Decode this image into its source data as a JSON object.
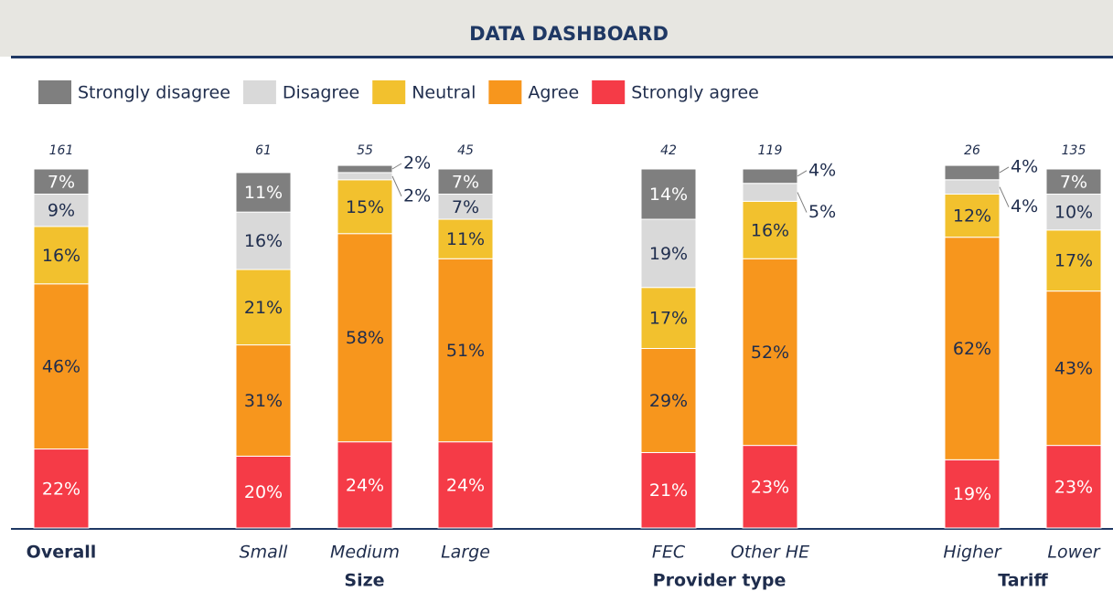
{
  "header": {
    "title": "DATA DASHBOARD"
  },
  "chart_data": {
    "type": "stacked_bar",
    "categories": [
      "Overall",
      "Small",
      "Medium",
      "Large",
      "FEC",
      "Other HE",
      "Higher",
      "Lower"
    ],
    "counts": [
      161,
      61,
      55,
      45,
      42,
      119,
      26,
      135
    ],
    "groups": [
      "Size",
      "Provider type",
      "Tariff"
    ],
    "series": [
      {
        "name": "Strongly agree",
        "color": "#f53b47",
        "values": [
          22,
          20,
          24,
          24,
          21,
          23,
          19,
          23
        ],
        "value_labels": [
          "22%",
          "20%",
          "24%",
          "24%",
          "21%",
          "23%",
          "19%",
          "23%"
        ]
      },
      {
        "name": "Agree",
        "color": "#f7961d",
        "values": [
          46,
          31,
          58,
          51,
          29,
          52,
          62,
          43
        ],
        "value_labels": [
          "46%",
          "31%",
          "58%",
          "51%",
          "29%",
          "52%",
          "62%",
          "43%"
        ]
      },
      {
        "name": "Neutral",
        "color": "#f2c12e",
        "values": [
          16,
          21,
          15,
          11,
          17,
          16,
          12,
          17
        ],
        "value_labels": [
          "16%",
          "21%",
          "15%",
          "11%",
          "17%",
          "16%",
          "12%",
          "17%"
        ]
      },
      {
        "name": "Disagree",
        "color": "#d9d9d9",
        "values": [
          9,
          16,
          2,
          7,
          19,
          5,
          4,
          10
        ],
        "value_labels": [
          "9%",
          "16%",
          "2%",
          "7%",
          "19%",
          "5%",
          "4%",
          "10%"
        ]
      },
      {
        "name": "Strongly disagree",
        "color": "#7f7f7f",
        "values": [
          7,
          11,
          2,
          7,
          14,
          4,
          4,
          7
        ],
        "value_labels": [
          "7%",
          "11%",
          "2%",
          "7%",
          "14%",
          "4%",
          "4%",
          "7%"
        ]
      }
    ]
  }
}
